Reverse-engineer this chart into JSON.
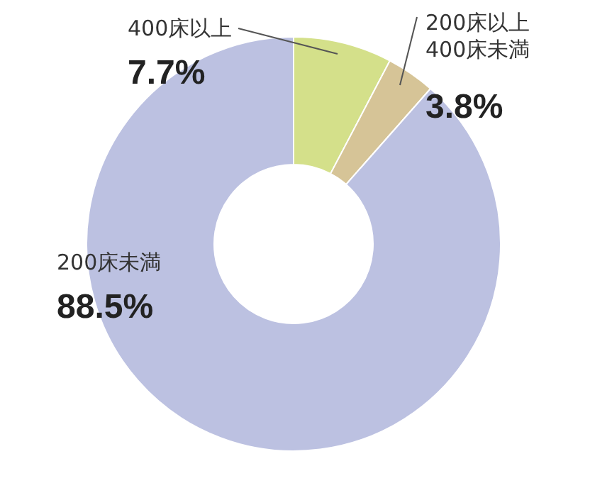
{
  "chart_data": {
    "type": "donut",
    "categories": [
      "400床以上",
      "200床以上\n400床未満",
      "200床未満"
    ],
    "values": [
      7.7,
      3.8,
      88.5
    ],
    "colors": [
      "#d4e08a",
      "#d6c497",
      "#bcc1e1"
    ],
    "value_labels": [
      "7.7%",
      "3.8%",
      "88.5%"
    ]
  }
}
